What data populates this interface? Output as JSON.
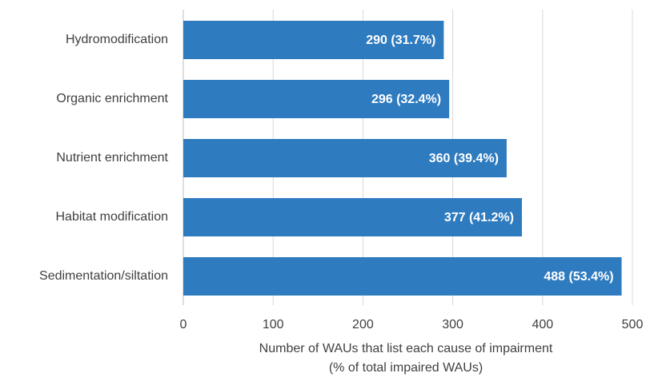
{
  "chart_data": {
    "type": "bar",
    "orientation": "horizontal",
    "categories": [
      "Hydromodification",
      "Organic enrichment",
      "Nutrient enrichment",
      "Habitat modification",
      "Sedimentation/siltation"
    ],
    "values": [
      290,
      296,
      360,
      377,
      488
    ],
    "value_labels": [
      "290 (31.7%)",
      "296 (32.4%)",
      "360 (39.4%)",
      "377 (41.2%)",
      "488 (53.4%)"
    ],
    "color": "#2f7bbf",
    "xlim": [
      0,
      500
    ],
    "xticks": [
      0,
      100,
      200,
      300,
      400,
      500
    ],
    "grid": true,
    "xlabel": [
      "Number of WAUs that list each cause of impairment",
      "(% of total impaired WAUs)"
    ]
  }
}
